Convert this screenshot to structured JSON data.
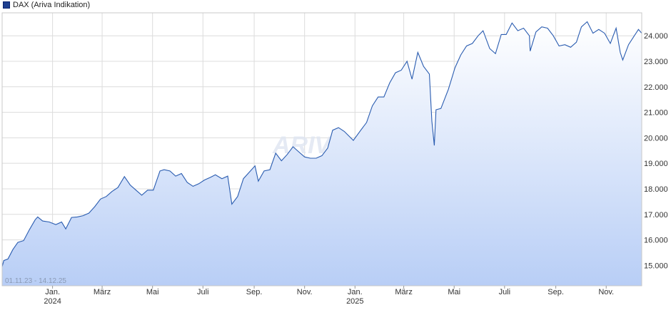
{
  "chart_data": {
    "type": "area",
    "title": "",
    "legend": {
      "label": "DAX (Ariva Indikation)",
      "placement": "top-left",
      "color": "#1f3f8f"
    },
    "range_label": "01.11.23 - 14.12.25",
    "x_range": [
      "2023-11-01",
      "2025-12-14"
    ],
    "ylim": [
      14200,
      24900
    ],
    "y_ticks": [
      15000,
      16000,
      17000,
      18000,
      19000,
      20000,
      21000,
      22000,
      23000,
      24000
    ],
    "y_tick_labels": [
      "15.000",
      "16.000",
      "17.000",
      "18.000",
      "19.000",
      "20.000",
      "21.000",
      "22.000",
      "23.000",
      "24.000"
    ],
    "x_ticks": [
      {
        "date": "2024-01-01",
        "label": "Jan.",
        "year": "2024"
      },
      {
        "date": "2024-03-01",
        "label": "März",
        "year": ""
      },
      {
        "date": "2024-05-01",
        "label": "Mai",
        "year": ""
      },
      {
        "date": "2024-07-01",
        "label": "Juli",
        "year": ""
      },
      {
        "date": "2024-09-01",
        "label": "Sep.",
        "year": ""
      },
      {
        "date": "2024-11-01",
        "label": "Nov.",
        "year": ""
      },
      {
        "date": "2025-01-01",
        "label": "Jan.",
        "year": "2025"
      },
      {
        "date": "2025-03-01",
        "label": "März",
        "year": ""
      },
      {
        "date": "2025-05-01",
        "label": "Mai",
        "year": ""
      },
      {
        "date": "2025-07-01",
        "label": "Juli",
        "year": ""
      },
      {
        "date": "2025-09-01",
        "label": "Sep.",
        "year": ""
      },
      {
        "date": "2025-11-01",
        "label": "Nov.",
        "year": ""
      }
    ],
    "grid": true,
    "colors": {
      "line": "#2a5cb0",
      "fill_top": "#ffffff",
      "fill_bottom": "#b8cef6",
      "grid": "#dcdcdc"
    },
    "series": [
      {
        "name": "DAX (Ariva Indikation)",
        "points": [
          [
            "2023-11-01",
            14950
          ],
          [
            "2023-11-03",
            15190
          ],
          [
            "2023-11-08",
            15250
          ],
          [
            "2023-11-14",
            15620
          ],
          [
            "2023-11-20",
            15900
          ],
          [
            "2023-11-27",
            15970
          ],
          [
            "2023-12-04",
            16400
          ],
          [
            "2023-12-11",
            16790
          ],
          [
            "2023-12-14",
            16900
          ],
          [
            "2023-12-20",
            16740
          ],
          [
            "2023-12-28",
            16700
          ],
          [
            "2024-01-05",
            16600
          ],
          [
            "2024-01-12",
            16700
          ],
          [
            "2024-01-17",
            16430
          ],
          [
            "2024-01-24",
            16880
          ],
          [
            "2024-01-31",
            16900
          ],
          [
            "2024-02-07",
            16950
          ],
          [
            "2024-02-14",
            17050
          ],
          [
            "2024-02-21",
            17300
          ],
          [
            "2024-02-28",
            17600
          ],
          [
            "2024-03-06",
            17700
          ],
          [
            "2024-03-13",
            17900
          ],
          [
            "2024-03-20",
            18050
          ],
          [
            "2024-03-28",
            18480
          ],
          [
            "2024-04-04",
            18150
          ],
          [
            "2024-04-11",
            17950
          ],
          [
            "2024-04-18",
            17750
          ],
          [
            "2024-04-25",
            17950
          ],
          [
            "2024-05-02",
            17950
          ],
          [
            "2024-05-10",
            18700
          ],
          [
            "2024-05-15",
            18750
          ],
          [
            "2024-05-22",
            18700
          ],
          [
            "2024-05-29",
            18500
          ],
          [
            "2024-06-05",
            18600
          ],
          [
            "2024-06-12",
            18250
          ],
          [
            "2024-06-19",
            18100
          ],
          [
            "2024-06-26",
            18200
          ],
          [
            "2024-07-03",
            18350
          ],
          [
            "2024-07-10",
            18450
          ],
          [
            "2024-07-16",
            18550
          ],
          [
            "2024-07-24",
            18400
          ],
          [
            "2024-07-31",
            18500
          ],
          [
            "2024-08-05",
            17400
          ],
          [
            "2024-08-12",
            17700
          ],
          [
            "2024-08-19",
            18400
          ],
          [
            "2024-08-26",
            18650
          ],
          [
            "2024-09-02",
            18900
          ],
          [
            "2024-09-06",
            18300
          ],
          [
            "2024-09-13",
            18700
          ],
          [
            "2024-09-20",
            18750
          ],
          [
            "2024-09-27",
            19400
          ],
          [
            "2024-10-04",
            19100
          ],
          [
            "2024-10-11",
            19350
          ],
          [
            "2024-10-18",
            19650
          ],
          [
            "2024-10-25",
            19450
          ],
          [
            "2024-11-01",
            19250
          ],
          [
            "2024-11-08",
            19200
          ],
          [
            "2024-11-15",
            19200
          ],
          [
            "2024-11-22",
            19300
          ],
          [
            "2024-11-29",
            19600
          ],
          [
            "2024-12-05",
            20300
          ],
          [
            "2024-12-12",
            20400
          ],
          [
            "2024-12-19",
            20250
          ],
          [
            "2024-12-30",
            19900
          ],
          [
            "2025-01-08",
            20300
          ],
          [
            "2025-01-15",
            20600
          ],
          [
            "2025-01-22",
            21250
          ],
          [
            "2025-01-29",
            21600
          ],
          [
            "2025-02-05",
            21600
          ],
          [
            "2025-02-12",
            22150
          ],
          [
            "2025-02-19",
            22550
          ],
          [
            "2025-02-26",
            22650
          ],
          [
            "2025-03-05",
            23000
          ],
          [
            "2025-03-11",
            22300
          ],
          [
            "2025-03-18",
            23350
          ],
          [
            "2025-03-25",
            22800
          ],
          [
            "2025-04-01",
            22500
          ],
          [
            "2025-04-04",
            20650
          ],
          [
            "2025-04-07",
            19700
          ],
          [
            "2025-04-09",
            21100
          ],
          [
            "2025-04-15",
            21150
          ],
          [
            "2025-04-24",
            21900
          ],
          [
            "2025-05-02",
            22750
          ],
          [
            "2025-05-09",
            23250
          ],
          [
            "2025-05-16",
            23600
          ],
          [
            "2025-05-23",
            23700
          ],
          [
            "2025-05-30",
            24000
          ],
          [
            "2025-06-05",
            24200
          ],
          [
            "2025-06-13",
            23500
          ],
          [
            "2025-06-20",
            23300
          ],
          [
            "2025-06-27",
            24050
          ],
          [
            "2025-07-03",
            24050
          ],
          [
            "2025-07-10",
            24500
          ],
          [
            "2025-07-17",
            24200
          ],
          [
            "2025-07-24",
            24300
          ],
          [
            "2025-07-31",
            24000
          ],
          [
            "2025-08-01",
            23400
          ],
          [
            "2025-08-08",
            24150
          ],
          [
            "2025-08-15",
            24350
          ],
          [
            "2025-08-22",
            24300
          ],
          [
            "2025-08-29",
            24000
          ],
          [
            "2025-09-05",
            23600
          ],
          [
            "2025-09-12",
            23650
          ],
          [
            "2025-09-19",
            23550
          ],
          [
            "2025-09-26",
            23750
          ],
          [
            "2025-10-02",
            24350
          ],
          [
            "2025-10-09",
            24550
          ],
          [
            "2025-10-16",
            24100
          ],
          [
            "2025-10-23",
            24250
          ],
          [
            "2025-10-30",
            24100
          ],
          [
            "2025-11-06",
            23700
          ],
          [
            "2025-11-13",
            24300
          ],
          [
            "2025-11-18",
            23350
          ],
          [
            "2025-11-21",
            23050
          ],
          [
            "2025-11-28",
            23650
          ],
          [
            "2025-12-05",
            24000
          ],
          [
            "2025-12-10",
            24250
          ],
          [
            "2025-12-14",
            24100
          ]
        ]
      }
    ]
  }
}
